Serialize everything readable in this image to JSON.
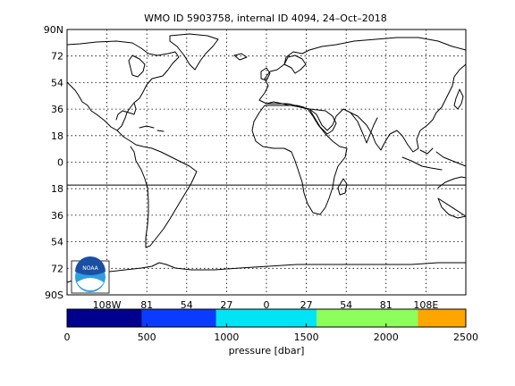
{
  "title": "WMO ID 5903758, internal ID 4094, 24–Oct–2018",
  "map": {
    "lat_ticks": [
      "90N",
      "72",
      "54",
      "36",
      "18",
      "0",
      "18",
      "36",
      "54",
      "72",
      "90S"
    ],
    "lon_ticks": [
      "108W",
      "81",
      "54",
      "27",
      "0",
      "27",
      "54",
      "81",
      "108E"
    ],
    "lat_values": [
      90,
      72,
      54,
      36,
      18,
      0,
      -18,
      -36,
      -54,
      -72,
      -90
    ],
    "lon_values": [
      -108,
      -81,
      -54,
      -27,
      0,
      27,
      54,
      81,
      108
    ],
    "lon_range": [
      -135,
      135
    ],
    "lat_range": [
      -90,
      90
    ],
    "grid": true,
    "reference_line_lat": -15.5,
    "line_color": "#000000",
    "logo": {
      "text": "NOAA",
      "colors": [
        "#1a4fa3",
        "#2e9fe0",
        "#ffffff"
      ]
    }
  },
  "colorbar": {
    "label": "pressure [dbar]",
    "tick_labels": [
      "0",
      "500",
      "1000",
      "1500",
      "2000",
      "2500"
    ],
    "tick_values": [
      0,
      500,
      1000,
      1500,
      2000,
      2500
    ],
    "range": [
      0,
      2500
    ],
    "segments": [
      {
        "from": 0,
        "to": 470,
        "color": "#00008f"
      },
      {
        "from": 470,
        "to": 935,
        "color": "#0a3cff"
      },
      {
        "from": 935,
        "to": 1565,
        "color": "#00e4f5"
      },
      {
        "from": 1565,
        "to": 2200,
        "color": "#8cff5a"
      },
      {
        "from": 2200,
        "to": 2500,
        "color": "#ffa500"
      }
    ]
  }
}
